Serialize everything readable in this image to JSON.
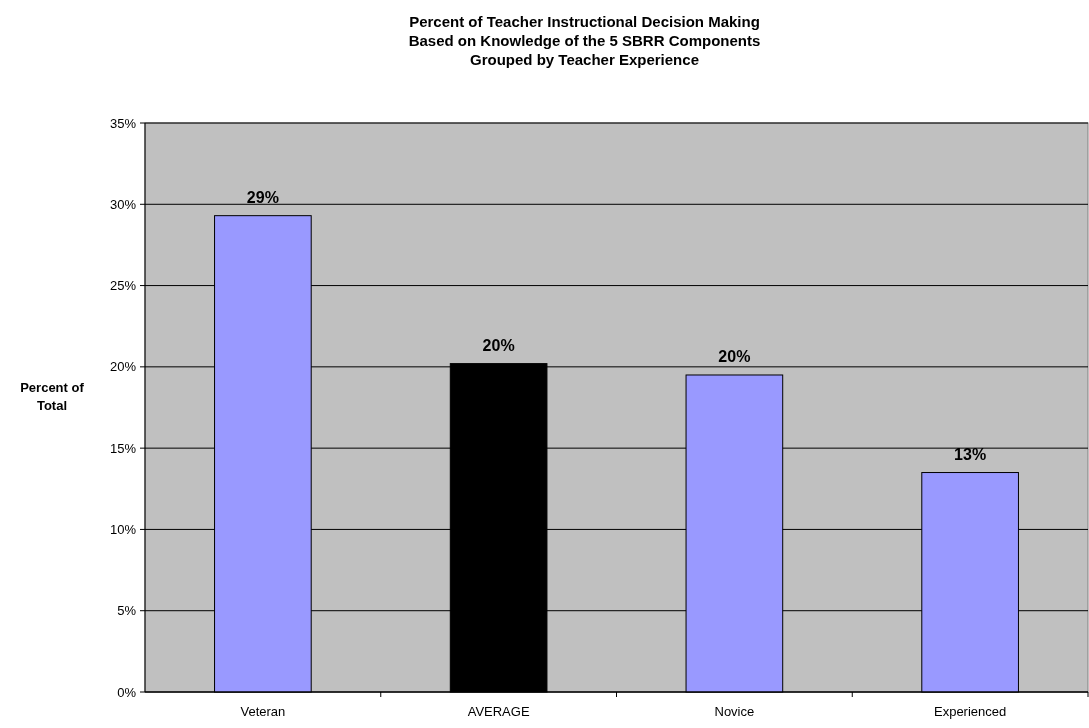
{
  "chart_data": {
    "type": "bar",
    "title": "Percent of Teacher Instructional Decision Making\nBased on Knowledge of the 5 SBRR Components\nGrouped by Teacher Experience",
    "ylabel": "Percent of\nTotal",
    "categories": [
      "Veteran",
      "AVERAGE",
      "Novice",
      "Experienced"
    ],
    "values": [
      29.3,
      20.2,
      19.5,
      13.5
    ],
    "colors": [
      "#9999ff",
      "#000000",
      "#9999ff",
      "#9999ff"
    ],
    "value_labels": [
      "29%",
      "20%",
      "20%",
      "13%"
    ],
    "ylim": [
      0,
      35
    ],
    "yticks": [
      {
        "value": 0,
        "label": "0%"
      },
      {
        "value": 5,
        "label": "5%"
      },
      {
        "value": 10,
        "label": "10%"
      },
      {
        "value": 15,
        "label": "15%"
      },
      {
        "value": 20,
        "label": "20%"
      },
      {
        "value": 25,
        "label": "25%"
      },
      {
        "value": 30,
        "label": "30%"
      },
      {
        "value": 35,
        "label": "35%"
      }
    ],
    "grid": "y"
  }
}
